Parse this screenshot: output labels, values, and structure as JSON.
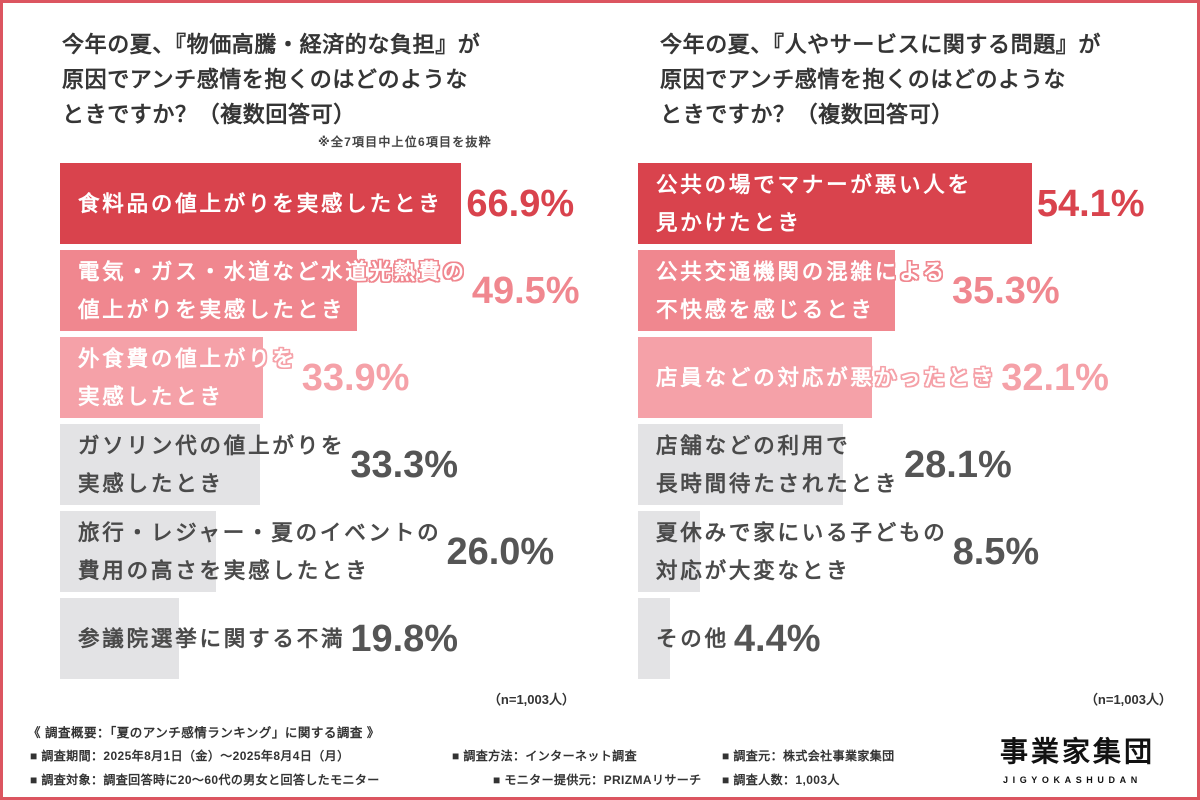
{
  "theme": {
    "frame_color": "#dc5560"
  },
  "chart_data": [
    {
      "type": "bar",
      "orientation": "horizontal",
      "grid": false,
      "title": "今年の夏、『物価高騰・経済的な負担』が\n原因でアンチ感情を抱くのはどのような\nときですか？（複数回答可）",
      "note": "※全7項目中上位6項目を抜粋",
      "categories": [
        "食料品の値上がりを実感したとき",
        "電気・ガス・水道など水道光熱費の\n値上がりを実感したとき",
        "外食費の値上がりを\n実感したとき",
        "ガソリン代の値上がりを\n実感したとき",
        "旅行・レジャー・夏のイベントの\n費用の高さを実感したとき",
        "参議院選挙に関する不満"
      ],
      "values": [
        66.9,
        49.5,
        33.9,
        33.3,
        26.0,
        19.8
      ],
      "unit": "%",
      "sample_note": "（n=1,003人）",
      "bar_colors": [
        "#d9434d",
        "#f0878f",
        "#f5a1a8",
        "#e3e3e5",
        "#e3e3e5",
        "#e3e3e5"
      ],
      "value_colors": [
        "#d9434d",
        "#f0878f",
        "#f5a1a8",
        "#555555",
        "#555555",
        "#555555"
      ],
      "label_colors": [
        "#ffffff",
        "#ffffff",
        "#ffffff",
        "#4a4a4a",
        "#4a4a4a",
        "#4a4a4a"
      ]
    },
    {
      "type": "bar",
      "orientation": "horizontal",
      "grid": false,
      "title": "今年の夏、『人やサービスに関する問題』が\n原因でアンチ感情を抱くのはどのような\nときですか？（複数回答可）",
      "categories": [
        "公共の場でマナーが悪い人を\n見かけたとき",
        "公共交通機関の混雑による\n不快感を感じるとき",
        "店員などの対応が悪かったとき",
        "店舗などの利用で\n長時間待たされたとき",
        "夏休みで家にいる子どもの\n対応が大変なとき",
        "その他"
      ],
      "values": [
        54.1,
        35.3,
        32.1,
        28.1,
        8.5,
        4.4
      ],
      "unit": "%",
      "sample_note": "（n=1,003人）",
      "bar_colors": [
        "#d9434d",
        "#f0878f",
        "#f5a1a8",
        "#e3e3e5",
        "#e3e3e5",
        "#e3e3e5"
      ],
      "value_colors": [
        "#d9434d",
        "#f0878f",
        "#f5a1a8",
        "#555555",
        "#555555",
        "#555555"
      ],
      "label_colors": [
        "#ffffff",
        "#ffffff",
        "#ffffff",
        "#4a4a4a",
        "#4a4a4a",
        "#4a4a4a"
      ]
    }
  ],
  "survey": {
    "heading": "《 調査概要：「夏のアンチ感情ランキング」に関する調査 》",
    "items": [
      "■ 調査期間：2025年8月1日（金）～2025年8月4日（月）",
      "■ 調査方法：インターネット調査",
      "■ 調査元：株式会社事業家集団",
      "■ 調査対象：調査回答時に20～60代の男女と回答したモニター",
      "■ モニター提供元：PRIZMAリサーチ",
      "■ 調査人数：1,003人"
    ]
  },
  "logo": {
    "name": "事業家集団",
    "romaji": "JIGYOKASHUDAN"
  }
}
